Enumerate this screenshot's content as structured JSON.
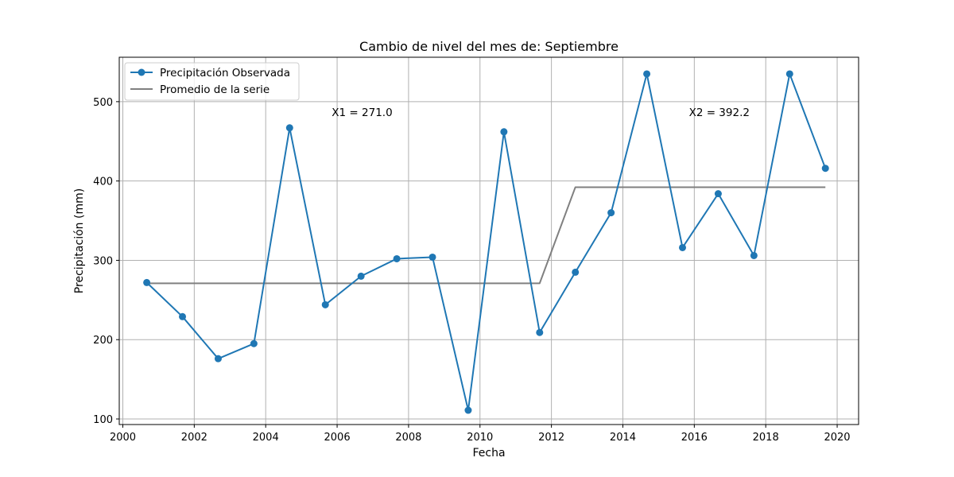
{
  "chart_data": {
    "type": "line",
    "title": "Cambio de nivel del mes de: Septiembre",
    "xlabel": "Fecha",
    "ylabel": "Precipitación (mm)",
    "xlim": [
      1999.9,
      2020.6
    ],
    "ylim": [
      93,
      556
    ],
    "xticks": [
      2000,
      2002,
      2004,
      2006,
      2008,
      2010,
      2012,
      2014,
      2016,
      2018,
      2020
    ],
    "yticks": [
      100,
      200,
      300,
      400,
      500
    ],
    "grid": true,
    "legend_position": "upper-left",
    "x": [
      2000.67,
      2001.67,
      2002.67,
      2003.67,
      2004.67,
      2005.67,
      2006.67,
      2007.67,
      2008.67,
      2009.67,
      2010.67,
      2011.67,
      2012.67,
      2013.67,
      2014.67,
      2015.67,
      2016.67,
      2017.67,
      2018.67,
      2019.67
    ],
    "series": [
      {
        "name": "Precipitación Observada",
        "color": "#1f77b4",
        "marker": "circle",
        "values": [
          272,
          229,
          176,
          195,
          467,
          244,
          280,
          302,
          304,
          111,
          462,
          209,
          285,
          360,
          535,
          316,
          384,
          306,
          535,
          416
        ]
      },
      {
        "name": "Promedio de la serie",
        "color": "#808080",
        "marker": "none",
        "values": [
          271.0,
          271.0,
          271.0,
          271.0,
          271.0,
          271.0,
          271.0,
          271.0,
          271.0,
          271.0,
          271.0,
          271.0,
          392.2,
          392.2,
          392.2,
          392.2,
          392.2,
          392.2,
          392.2,
          392.2
        ]
      }
    ],
    "annotations": [
      {
        "text": "X1 = 271.0",
        "x": 2006.7,
        "y": 482
      },
      {
        "text": "X2 = 392.2",
        "x": 2016.7,
        "y": 482
      }
    ]
  }
}
